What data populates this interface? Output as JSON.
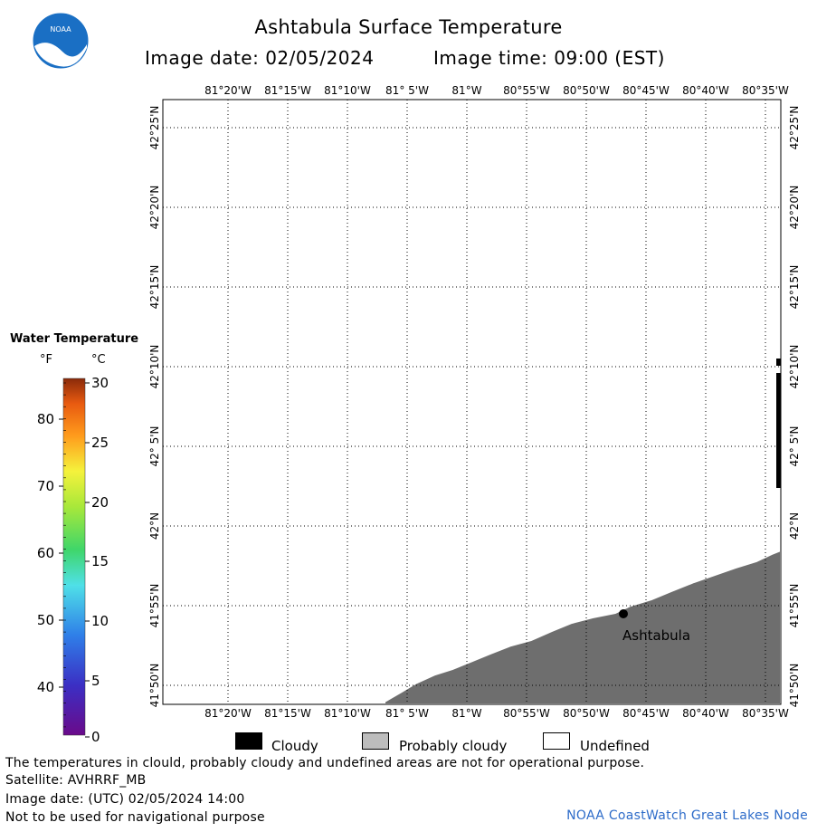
{
  "header": {
    "logo_text": "NOAA",
    "title": "Ashtabula Surface Temperature",
    "image_date": "Image date: 02/05/2024",
    "image_time": "Image time: 09:00 (EST)"
  },
  "map": {
    "lon_labels": [
      "81°20'W",
      "81°15'W",
      "81°10'W",
      "81° 5'W",
      "81°W",
      "80°55'W",
      "80°50'W",
      "80°45'W",
      "80°40'W",
      "80°35'W"
    ],
    "lat_labels": [
      "42°25'N",
      "42°20'N",
      "42°15'N",
      "42°10'N",
      "42° 5'N",
      "42°N",
      "41°55'N",
      "41°50'N"
    ],
    "city_label": "Ashtabula",
    "colors": {
      "land": "#6e6e6e",
      "cloud": "#000000",
      "prob_cloud": "#bdbdbd",
      "grid": "#000000"
    }
  },
  "legend": {
    "title": "Water Temperature",
    "unit_f": "°F",
    "unit_c": "°C",
    "f_ticks": [
      "80",
      "70",
      "60",
      "50",
      "40"
    ],
    "c_ticks": [
      "30",
      "25",
      "20",
      "15",
      "10",
      "5",
      "0"
    ]
  },
  "key": {
    "cloudy": "Cloudy",
    "probably_cloudy": "Probably cloudy",
    "undefined": "Undefined"
  },
  "footer": {
    "line1": "The temperatures in clould, probably cloudy and undefined areas are not for operational purpose.",
    "line2": "Satellite: AVHRRF_MB",
    "line3": "Image date: (UTC) 02/05/2024  14:00",
    "line4": "Not to be used for navigational purpose",
    "credit": "NOAA CoastWatch Great Lakes Node"
  }
}
